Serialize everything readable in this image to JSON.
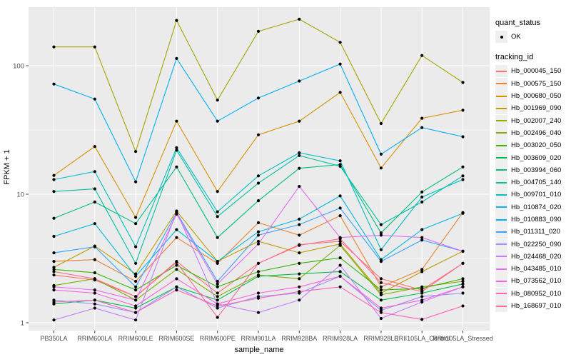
{
  "axes": {
    "y_title": "FPKM + 1",
    "x_title": "sample_name",
    "y_tick_labels": [
      "1",
      "10",
      "100"
    ]
  },
  "legend": {
    "quant_status_title": "quant_status",
    "quant_status_items": [
      {
        "label": "OK",
        "marker": "black-point"
      }
    ],
    "tracking_id_title": "tracking_id"
  },
  "colors": {
    "panel_bg": "#EBEBEB",
    "gridline": "#FFFFFF",
    "axis_text": "#4D4D4D",
    "tick_mark": "#333333",
    "point": "#000000",
    "legend_key_bg": "#EFEFEF"
  },
  "chart_data": {
    "type": "line",
    "title": "",
    "xlabel": "sample_name",
    "ylabel": "FPKM + 1",
    "y_scale": "log10",
    "ylim": [
      1,
      290
    ],
    "y_major_ticks": [
      1,
      10,
      100
    ],
    "y_minor_ticks": [
      3.162,
      31.62
    ],
    "grid": true,
    "legend_position": "right",
    "point_marker": "small black point on every vertex (quant_status = OK)",
    "categories": [
      "PB350LA",
      "RRIM600LA",
      "RRIM600LE",
      "RRIM600SE",
      "RRIM600PE",
      "RRIM901LA",
      "RRIM928BA",
      "RRIM928LA",
      "RRIM928LE",
      "RRII105LA_Control",
      "RRII105LA_Stressed"
    ],
    "series": [
      {
        "name": "Hb_000045_150",
        "color": "#F8766D",
        "values": [
          2.35,
          2.15,
          1.6,
          3.0,
          1.7,
          2.9,
          4.05,
          4.3,
          2.2,
          1.8,
          2.9
        ]
      },
      {
        "name": "Hb_000575_150",
        "color": "#EA8331",
        "values": [
          3.0,
          3.1,
          2.1,
          4.6,
          2.9,
          6.0,
          4.8,
          6.8,
          1.9,
          2.6,
          7.2
        ]
      },
      {
        "name": "Hb_000680_050",
        "color": "#D89000",
        "values": [
          14.0,
          23.5,
          6.6,
          37.0,
          10.5,
          29.0,
          37.0,
          62.0,
          16.0,
          39.0,
          45.0
        ]
      },
      {
        "name": "Hb_001969_090",
        "color": "#C09B00",
        "values": [
          2.7,
          3.95,
          2.4,
          7.4,
          3.0,
          4.3,
          3.5,
          4.1,
          1.7,
          2.5,
          3.6
        ]
      },
      {
        "name": "Hb_002007_240",
        "color": "#A3A500",
        "values": [
          140,
          140,
          21.5,
          225,
          54,
          185,
          230,
          152,
          35.5,
          120,
          74
        ]
      },
      {
        "name": "Hb_002496_040",
        "color": "#7CAE00",
        "values": [
          1.95,
          2.2,
          1.5,
          2.6,
          1.6,
          2.35,
          2.2,
          4.0,
          1.65,
          1.9,
          2.1
        ]
      },
      {
        "name": "Hb_003020_050",
        "color": "#39B600",
        "values": [
          2.6,
          2.45,
          1.8,
          2.8,
          1.9,
          2.5,
          2.9,
          3.2,
          1.8,
          1.85,
          2.2
        ]
      },
      {
        "name": "Hb_003609_020",
        "color": "#00BB4E",
        "values": [
          1.4,
          1.5,
          1.3,
          1.9,
          1.5,
          2.3,
          2.4,
          2.5,
          1.5,
          1.7,
          2.0
        ]
      },
      {
        "name": "Hb_003994_060",
        "color": "#00BF7D",
        "values": [
          6.5,
          8.7,
          5.9,
          16.3,
          4.6,
          8.9,
          15.9,
          17.0,
          5.0,
          10.4,
          16.3
        ]
      },
      {
        "name": "Hb_004705_140",
        "color": "#00C1A3",
        "values": [
          10.5,
          11.0,
          2.9,
          22.0,
          6.7,
          12.2,
          20.0,
          16.5,
          5.8,
          8.7,
          13.9
        ]
      },
      {
        "name": "Hb_009701_010",
        "color": "#00BFC4",
        "values": [
          13.0,
          15.0,
          3.9,
          23.0,
          7.3,
          13.9,
          21.0,
          18.2,
          3.7,
          9.5,
          13.0
        ]
      },
      {
        "name": "Hb_010874_020",
        "color": "#00BAE0",
        "values": [
          4.7,
          5.9,
          2.3,
          5.3,
          3.0,
          5.1,
          6.4,
          9.7,
          3.1,
          5.3,
          7.1
        ]
      },
      {
        "name": "Hb_010883_090",
        "color": "#00B0F6",
        "values": [
          72,
          55,
          12.5,
          114,
          37,
          56,
          76,
          103,
          20.5,
          33,
          28
        ]
      },
      {
        "name": "Hb_011311_020",
        "color": "#35A2FF",
        "values": [
          3.5,
          3.9,
          1.9,
          7.2,
          2.1,
          4.8,
          5.8,
          7.8,
          3.0,
          4.4,
          3.6
        ]
      },
      {
        "name": "Hb_022250_090",
        "color": "#9590FF",
        "values": [
          1.5,
          1.4,
          1.2,
          1.9,
          1.3,
          1.6,
          1.7,
          2.3,
          1.25,
          1.6,
          1.7
        ]
      },
      {
        "name": "Hb_024468_020",
        "color": "#C77CFF",
        "values": [
          1.05,
          1.3,
          1.05,
          7.3,
          1.4,
          1.2,
          1.5,
          2.8,
          1.08,
          1.45,
          1.9
        ]
      },
      {
        "name": "Hb_043485_010",
        "color": "#E76BF3",
        "values": [
          1.9,
          1.8,
          1.5,
          7.0,
          2.0,
          4.1,
          11.5,
          4.6,
          4.8,
          4.6,
          3.6
        ]
      },
      {
        "name": "Hb_073562_010",
        "color": "#FA62DB",
        "values": [
          1.8,
          1.7,
          1.35,
          2.2,
          1.4,
          1.7,
          1.9,
          2.3,
          1.3,
          1.5,
          1.9
        ]
      },
      {
        "name": "Hb_080952_010",
        "color": "#FF62BC",
        "values": [
          1.45,
          1.5,
          1.2,
          1.8,
          1.35,
          1.55,
          1.75,
          1.9,
          1.2,
          1.06,
          1.35
        ]
      },
      {
        "name": "Hb_168697_010",
        "color": "#FF6A98",
        "values": [
          2.5,
          2.2,
          1.6,
          2.95,
          1.1,
          2.9,
          4.0,
          4.5,
          2.05,
          1.75,
          2.9
        ]
      }
    ]
  }
}
